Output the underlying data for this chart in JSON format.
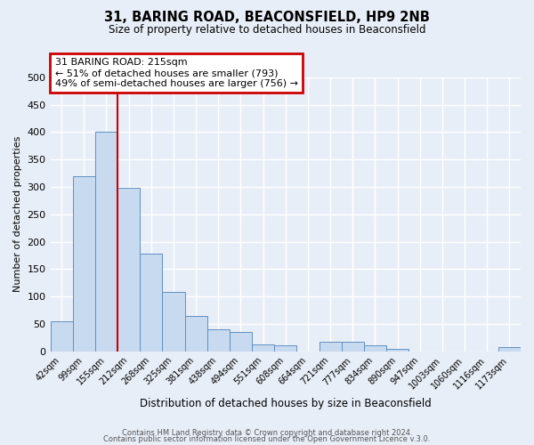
{
  "title": "31, BARING ROAD, BEACONSFIELD, HP9 2NB",
  "subtitle": "Size of property relative to detached houses in Beaconsfield",
  "xlabel": "Distribution of detached houses by size in Beaconsfield",
  "ylabel": "Number of detached properties",
  "bar_labels": [
    "42sqm",
    "99sqm",
    "155sqm",
    "212sqm",
    "268sqm",
    "325sqm",
    "381sqm",
    "438sqm",
    "494sqm",
    "551sqm",
    "608sqm",
    "664sqm",
    "721sqm",
    "777sqm",
    "834sqm",
    "890sqm",
    "947sqm",
    "1003sqm",
    "1060sqm",
    "1116sqm",
    "1173sqm"
  ],
  "bar_values": [
    55,
    320,
    400,
    298,
    178,
    108,
    65,
    40,
    35,
    12,
    10,
    0,
    18,
    18,
    10,
    5,
    0,
    0,
    0,
    0,
    7
  ],
  "bar_color": "#c8daf0",
  "bar_edge_color": "#6090c0",
  "vline_color": "#cc0000",
  "annotation_text": "31 BARING ROAD: 215sqm\n← 51% of detached houses are smaller (793)\n49% of semi-detached houses are larger (756) →",
  "annotation_box_color": "white",
  "annotation_box_edge_color": "#cc0000",
  "ylim": [
    0,
    500
  ],
  "yticks": [
    0,
    50,
    100,
    150,
    200,
    250,
    300,
    350,
    400,
    450,
    500
  ],
  "footer1": "Contains HM Land Registry data © Crown copyright and database right 2024.",
  "footer2": "Contains public sector information licensed under the Open Government Licence v.3.0.",
  "bg_color": "#e8eef8",
  "plot_bg_color": "#e8eef8",
  "grid_color": "white"
}
